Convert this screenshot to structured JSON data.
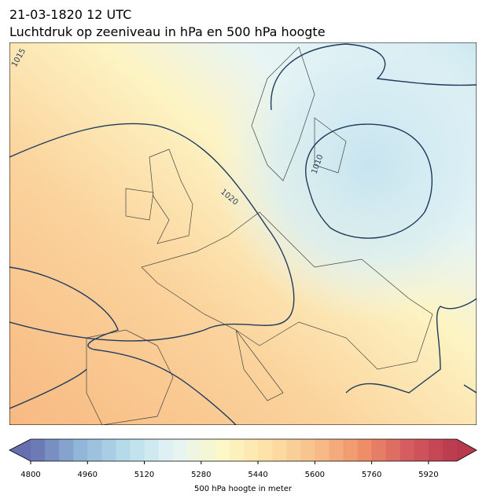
{
  "header": {
    "title": "21-03-1820 12 UTC",
    "subtitle": "Luchtdruk op zeeniveau in hPa en 500 hPa hoogte"
  },
  "map": {
    "contour_labels": [
      1015,
      1020,
      1010
    ]
  },
  "colorbar": {
    "label": "500 hPa hoogte in meter",
    "lim": [
      4800,
      6000
    ],
    "step": 40,
    "ticks": [
      4800,
      4960,
      5120,
      5280,
      5440,
      5600,
      5760,
      5920
    ],
    "colors": [
      "#6670b0",
      "#8fb4d6",
      "#b7dcea",
      "#e4f3f6",
      "#fbf8c8",
      "#fde2a6",
      "#f8c08a",
      "#f0906a",
      "#d45a5e",
      "#b8384e"
    ]
  }
}
